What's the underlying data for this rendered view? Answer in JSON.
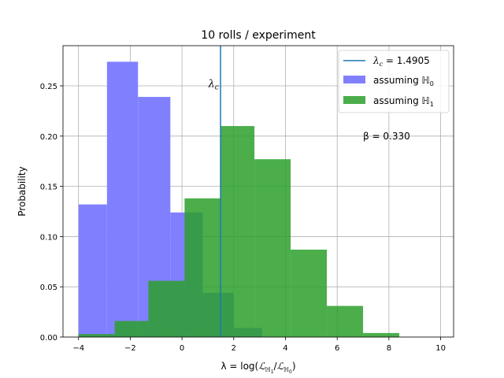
{
  "chart_data": {
    "type": "bar",
    "title": "10 rolls / experiment",
    "xlabel_prefix": "λ = log(",
    "xlabel_suffix": ")",
    "ylabel": "Probability",
    "xlim": [
      -4.6,
      10.5
    ],
    "ylim": [
      0,
      0.29
    ],
    "xticks": [
      -4,
      -2,
      0,
      2,
      4,
      6,
      8,
      10
    ],
    "yticks": [
      0.0,
      0.05,
      0.1,
      0.15,
      0.2,
      0.25
    ],
    "xtick_labels": [
      "−4",
      "−2",
      "0",
      "2",
      "4",
      "6",
      "8",
      "10"
    ],
    "ytick_labels": [
      "0.00",
      "0.05",
      "0.10",
      "0.15",
      "0.20",
      "0.25"
    ],
    "grid": true,
    "legend_position": "top-right",
    "critical_value": 1.4905,
    "critical_label_value": "1.4905",
    "critical_annotation_x": 1.2,
    "critical_annotation_y": 0.252,
    "beta_text": "β = 0.330",
    "beta_x": 7.0,
    "beta_y": 0.2,
    "series": [
      {
        "name": "assuming ℍ",
        "subscript": "0",
        "color": "#8080ff",
        "bins": [
          {
            "x0": -4.0,
            "x1": -2.9,
            "y": 0.132
          },
          {
            "x0": -2.9,
            "x1": -1.7,
            "y": 0.274
          },
          {
            "x0": -1.7,
            "x1": -0.45,
            "y": 0.239
          },
          {
            "x0": -0.45,
            "x1": 0.8,
            "y": 0.124
          },
          {
            "x0": 0.8,
            "x1": 2.0,
            "y": 0.044
          },
          {
            "x0": 2.0,
            "x1": 3.1,
            "y": 0.009
          }
        ]
      },
      {
        "name": "assuming ℍ",
        "subscript": "1",
        "color": "#2ca02c",
        "bins": [
          {
            "x0": -4.0,
            "x1": -2.6,
            "y": 0.003
          },
          {
            "x0": -2.6,
            "x1": -1.3,
            "y": 0.016
          },
          {
            "x0": -1.3,
            "x1": 0.1,
            "y": 0.056
          },
          {
            "x0": 0.1,
            "x1": 1.5,
            "y": 0.138
          },
          {
            "x0": 1.5,
            "x1": 2.8,
            "y": 0.21
          },
          {
            "x0": 2.8,
            "x1": 4.2,
            "y": 0.177
          },
          {
            "x0": 4.2,
            "x1": 5.6,
            "y": 0.087
          },
          {
            "x0": 5.6,
            "x1": 7.0,
            "y": 0.031
          },
          {
            "x0": 7.0,
            "x1": 8.4,
            "y": 0.004
          },
          {
            "x0": 8.4,
            "x1": 9.8,
            "y": 0.0
          }
        ]
      }
    ],
    "critical_line_color": "#1f77b4"
  }
}
